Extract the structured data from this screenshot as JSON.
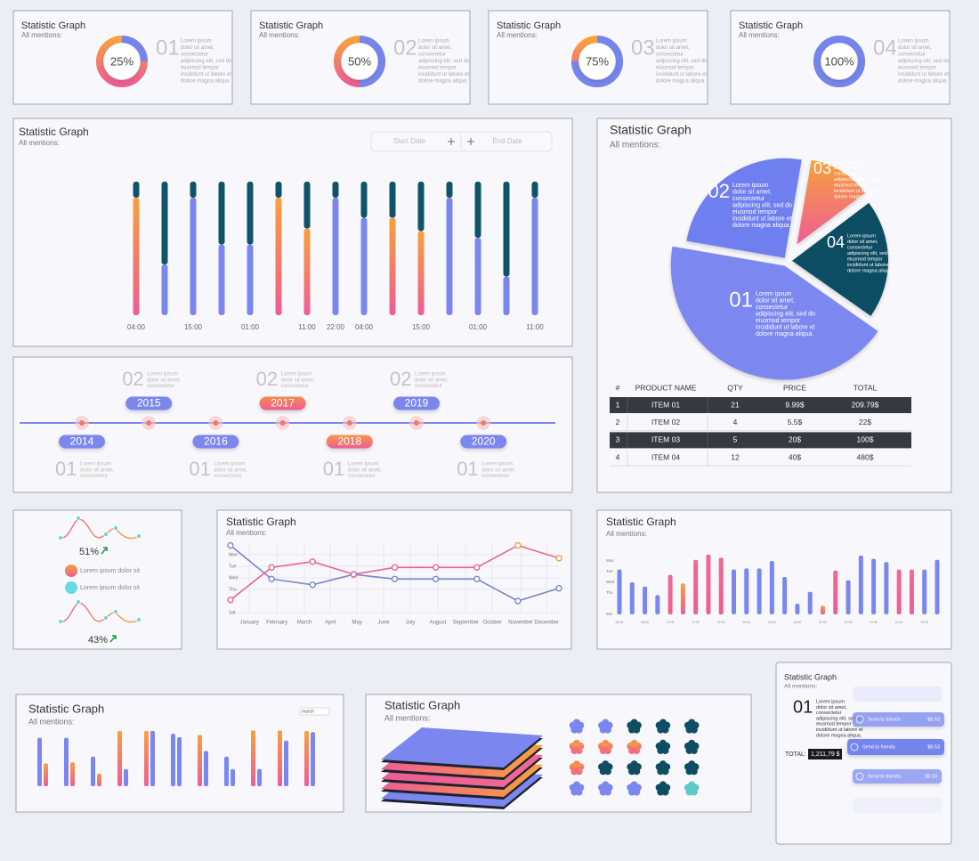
{
  "chart_data": [
    {
      "type": "donut",
      "title": "Statistic Graph",
      "subtitle": "All mentions:",
      "values": [
        25
      ],
      "value_labels": [
        "25%"
      ],
      "color": "#7485ee",
      "rest_color": "#f7a13c",
      "number": "01",
      "text": [
        "Lorem ipsum",
        "dolor sit amet,",
        "consectetur",
        "adipiscing elit, sed do",
        "eiusmod tempor",
        "incididunt ut labore et",
        "dolore magna aliqua."
      ]
    },
    {
      "type": "donut",
      "title": "Statistic Graph",
      "subtitle": "All mentions:",
      "values": [
        50
      ],
      "value_labels": [
        "50%"
      ],
      "color": "#7485ee",
      "rest_color": "#f7a13c",
      "number": "02",
      "text": [
        "Lorem ipsum",
        "dolor sit amet,",
        "consectetur",
        "adipiscing elit, sed do",
        "eiusmod tempor",
        "incididunt ut labore et",
        "dolore magna aliqua."
      ]
    },
    {
      "type": "donut",
      "title": "Statistic Graph",
      "subtitle": "All mentions:",
      "values": [
        75
      ],
      "value_labels": [
        "75%"
      ],
      "color": "#7485ee",
      "rest_color": "#f7a13c",
      "number": "03",
      "text": [
        "Lorem ipsum",
        "dolor sit amet,",
        "consectetur",
        "adipiscing elit, sed do",
        "eiusmod tempor",
        "incididunt ut labore et",
        "dolore magna aliqua."
      ]
    },
    {
      "type": "donut",
      "title": "Statistic Graph",
      "subtitle": "All mentions:",
      "values": [
        100
      ],
      "value_labels": [
        "100%"
      ],
      "color": "#7485ee",
      "rest_color": "#f7a13c",
      "number": "04",
      "text": [
        "Lorem ipsum",
        "dolor sit amet,",
        "consectetur",
        "adipiscing elit, sed do",
        "eiusmod tempor",
        "incididunt ut labore et",
        "dolore magna aliqua."
      ]
    },
    {
      "type": "stacked-bar",
      "title": "Statistic Graph",
      "subtitle": "All mentions:",
      "controls": [
        "Start Date",
        "End Date"
      ],
      "categories": [
        "04:00",
        null,
        "15:00",
        null,
        "01:00",
        null,
        "11:00",
        "22:00",
        "04:00",
        null,
        "15:00",
        null,
        "01:00",
        null,
        "11:00"
      ],
      "ylim": [
        0,
        100
      ],
      "series": [
        {
          "values": [
            88,
            38,
            88,
            53,
            53,
            88,
            65,
            88,
            73,
            73,
            63,
            88,
            58,
            29,
            88
          ],
          "colors": [
            "#f7a13c",
            "#7b87ee",
            "#7b87ee",
            "#7b87ee",
            "#7b87ee",
            "#f7a13c",
            "#f7a13c",
            "#7b87ee",
            "#7b87ee",
            "#f7a13c",
            "#f7a13c",
            "#7b87ee",
            "#7b87ee",
            "#7b87ee",
            "#7b87ee"
          ]
        },
        {
          "values": [
            12,
            62,
            12,
            47,
            47,
            12,
            35,
            12,
            27,
            27,
            37,
            12,
            42,
            71,
            12
          ],
          "color": "#0f5468"
        }
      ]
    },
    {
      "type": "pie",
      "title": "Statistic Graph",
      "subtitle": "All mentions:",
      "categories": [
        "01",
        "02",
        "03",
        "04"
      ],
      "values": [
        43,
        25,
        12,
        20
      ],
      "colors": [
        "#7b87f0",
        "#6f7ff0",
        "#f7a13c",
        "#0f4d64"
      ],
      "labels": [
        [
          "Lorem ipsum",
          "dolor sit amet,",
          "consectetur",
          "adipiscing elit, sed do",
          "eiusmod tempor",
          "incididunt ut labore et",
          "dolore magna aliqua."
        ],
        [
          "Lorem ipsum",
          "dolor sit amet,",
          "consectetur",
          "adipiscing elit, sed do",
          "eiusmod tempor",
          "incididunt ut labore et",
          "dolore magna aliqua."
        ],
        [
          "Lorem ipsum",
          "dolor sit amet,",
          "consectetur",
          "adipiscing elit, sed do",
          "eiusmod tempor",
          "incididunt ut labore et",
          "dolore magna aliqua."
        ],
        [
          "Lorem ipsum",
          "dolor sit amet,",
          "consectetur",
          "adipiscing elit, sed do",
          "eiusmod tempor",
          "incididunt ut labore et",
          "dolore magna aliqua."
        ]
      ]
    },
    {
      "type": "line",
      "title": "Statistic Graph",
      "subtitle": "All mentions:",
      "x": [
        0,
        1,
        2,
        3,
        4,
        5,
        6,
        7,
        8
      ],
      "xlim": [
        0,
        8
      ],
      "xticks": [
        {
          "value": 0.46,
          "label": "January"
        },
        {
          "value": 1.13,
          "label": "February"
        },
        {
          "value": 1.8,
          "label": "March"
        },
        {
          "value": 2.43,
          "label": "April"
        },
        {
          "value": 3.08,
          "label": "May"
        },
        {
          "value": 3.73,
          "label": "June"
        },
        {
          "value": 4.38,
          "label": "July"
        },
        {
          "value": 5.05,
          "label": "August"
        },
        {
          "value": 5.73,
          "label": "September"
        },
        {
          "value": 6.38,
          "label": "October"
        },
        {
          "value": 7.07,
          "label": "November"
        },
        {
          "value": 7.7,
          "label": "December"
        }
      ],
      "ylim": [
        0,
        6
      ],
      "yticks": [
        {
          "value": 5,
          "label": "Mon"
        },
        {
          "value": 4,
          "label": "Tue"
        },
        {
          "value": 3,
          "label": "Wed"
        },
        {
          "value": 2,
          "label": "Thu"
        },
        {
          "value": 0,
          "label": "Sat"
        }
      ],
      "grid": true,
      "series": [
        {
          "color": "#7b86c8",
          "values": [
            5.8,
            2.9,
            2.4,
            3.3,
            2.9,
            2.9,
            2.9,
            1,
            2.1
          ]
        },
        {
          "color": "#e8688e",
          "values": [
            1.1,
            3.9,
            4.4,
            3.3,
            3.9,
            3.9,
            3.9,
            5.8,
            4.7
          ]
        }
      ]
    },
    {
      "type": "bar",
      "title": "Statistic Graph",
      "subtitle": "All mentions:",
      "categories": [
        "04:00",
        null,
        "08:00",
        null,
        "10:00",
        null,
        "11:00",
        null,
        "22:00",
        null,
        "04:00",
        null,
        "15:00",
        null,
        "18:00",
        null,
        "21:00",
        null,
        "22:00",
        null,
        "01:00",
        null,
        "11:00",
        null,
        "22:00",
        null
      ],
      "values": [
        4.2,
        3,
        2.6,
        1.8,
        3.7,
        2.9,
        5.1,
        5.6,
        5.3,
        4.2,
        4.3,
        4.3,
        5,
        3.5,
        1,
        2.1,
        0.8,
        4.1,
        3.2,
        5.5,
        5.2,
        4.9,
        4.2,
        4.2,
        4.2,
        5.1
      ],
      "colors": [
        "#7b87ee",
        "#7b87ee",
        "#7b87ee",
        "#7b87ee",
        "#f06a90",
        "#f7a13c",
        "#f06a90",
        "#f06a90",
        "#f06a90",
        "#7b87ee",
        "#7b87ee",
        "#7b87ee",
        "#7b87ee",
        "#7b87ee",
        "#7b87ee",
        "#7b87ee",
        "#f7a13c",
        "#f06a90",
        "#7b87ee",
        "#7b87ee",
        "#7b87ee",
        "#7b87ee",
        "#f06a90",
        "#f06a90",
        "#7b87ee",
        "#7b87ee"
      ],
      "ylim": [
        0,
        6
      ],
      "yticks": [
        {
          "value": 5,
          "label": "Mon"
        },
        {
          "value": 4,
          "label": "Tue"
        },
        {
          "value": 3,
          "label": "Wed"
        },
        {
          "value": 2,
          "label": "Thu"
        },
        {
          "value": 0,
          "label": "Sat"
        }
      ]
    },
    {
      "type": "grouped-bar",
      "title": "Statistic Graph",
      "subtitle": "All mentions:",
      "control": "march",
      "ylim": [
        0,
        100
      ],
      "series": [
        {
          "values": [
            85,
            85,
            52,
            97,
            97,
            92,
            90,
            52,
            98,
            98,
            97
          ],
          "colors": [
            "#7b87ee",
            "#7b87ee",
            "#7b87ee",
            "#f7a13c",
            "#f7a13c",
            "#7b87ee",
            "#f7a13c",
            "#7b87ee",
            "#f7a13c",
            "#f7a13c",
            "#f7a13c"
          ]
        },
        {
          "values": [
            40,
            42,
            22,
            30,
            97,
            86,
            62,
            30,
            30,
            80,
            95
          ],
          "colors": [
            "#f7a13c",
            "#f7a13c",
            "#f7a13c",
            "#7b87ee",
            "#7b87ee",
            "#7b87ee",
            "#7b87ee",
            "#7b87ee",
            "#7b87ee",
            "#7b87ee",
            "#7b87ee"
          ]
        }
      ]
    }
  ],
  "table": {
    "columns": [
      "#",
      "PRODUCT NAME",
      "QTY",
      "PRICE",
      "TOTAL"
    ],
    "rows": [
      [
        "1",
        "ITEM 01",
        "21",
        "9.99$",
        "209.79$"
      ],
      [
        "2",
        "ITEM 02",
        "4",
        "5.5$",
        "22$"
      ],
      [
        "3",
        "ITEM 03",
        "5",
        "20$",
        "100$"
      ],
      [
        "4",
        "ITEM 04",
        "12",
        "40$",
        "480$"
      ]
    ]
  },
  "timeline": {
    "events": [
      {
        "year": "2014",
        "number": "01",
        "color": "#7b87ee",
        "text": [
          "Lorem ipsum",
          "dolor sit amet,",
          "consectetur"
        ]
      },
      {
        "year": "2015",
        "number": "02",
        "color": "#7b87ee",
        "text": [
          "Lorem ipsum",
          "dolor sit amet,",
          "consectetur"
        ]
      },
      {
        "year": "2016",
        "number": "01",
        "color": "#7b87ee",
        "text": [
          "Lorem ipsum",
          "dolor sit amet,",
          "consectetur"
        ]
      },
      {
        "year": "2017",
        "number": "02",
        "color": "#f48a4c",
        "text": [
          "Lorem ipsum",
          "dolor sit amet,",
          "consectetur"
        ]
      },
      {
        "year": "2018",
        "number": "01",
        "color": "#f59a45",
        "text": [
          "Lorem ipsum",
          "dolor sit amet,",
          "consectetur"
        ]
      },
      {
        "year": "2019",
        "number": "02",
        "color": "#7b87ee",
        "text": [
          "Lorem ipsum",
          "dolor sit amet,",
          "consectetur"
        ]
      },
      {
        "year": "2020",
        "number": "01",
        "color": "#7b87ee",
        "text": [
          "Lorem ipsum",
          "dolor sit amet,",
          "consectetur"
        ]
      }
    ]
  },
  "kpi_panel": {
    "items": [
      "51%",
      "43%"
    ],
    "legend": [
      "Lorem ipsum dolor sit",
      "Lorem ipsum dolor sit"
    ]
  },
  "layers_panel": {
    "title": "Statistic Graph",
    "subtitle": "All mentions:"
  },
  "invoice": {
    "title": "Statistic Graph",
    "subtitle": "All mentions:",
    "number": "01",
    "text": [
      "Lorem ipsum",
      "dolor sit amet,",
      "consectetur",
      "adipiscing elit, sed do",
      "eiusmod tempor",
      "incididunt ut labore et",
      "dolore magna aliqua."
    ],
    "total_label": "TOTAL:",
    "total": "1,211,79 $",
    "items": [
      {
        "label": "Send to friends",
        "price": "$8.53"
      },
      {
        "label": "Send to friends",
        "price": "$8.53"
      },
      {
        "label": "Send to friends",
        "price": "$8.53"
      }
    ]
  }
}
